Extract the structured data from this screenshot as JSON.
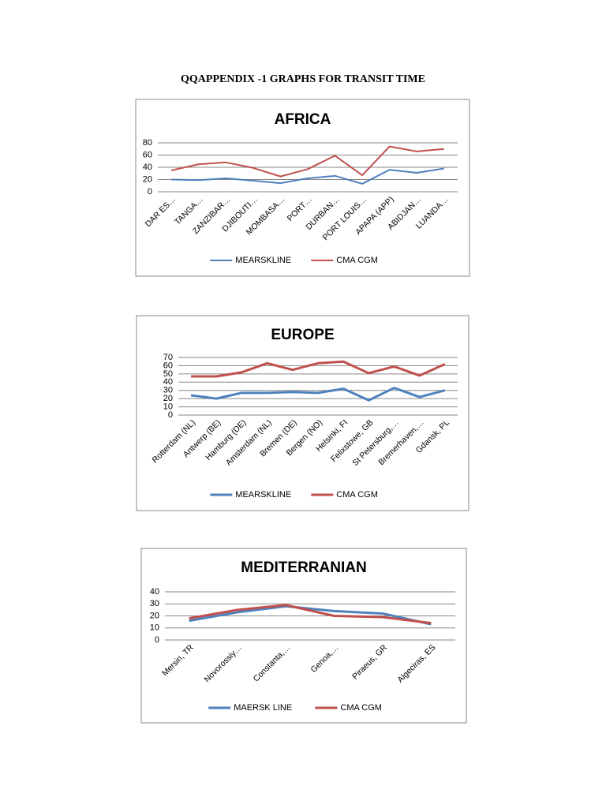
{
  "title": "QQAPPENDIX -1 GRAPHS FOR TRANSIT TIME",
  "chart_data": [
    {
      "type": "line",
      "title": "AFRICA",
      "categories": [
        "DAR ES…",
        "TANGA…",
        "ZANZIBAR…",
        "DJIBOUTI…",
        "MOMBASA…",
        "PORT…",
        "DURBAN…",
        "PORT LOUIS…",
        "APAPA (APP)",
        "ABIDJAN…",
        "LUANDA…"
      ],
      "series": [
        {
          "name": "MEARSKLINE",
          "color": "#4f81bd",
          "values": [
            20,
            19,
            22,
            18,
            14,
            22,
            26,
            13,
            36,
            31,
            38
          ]
        },
        {
          "name": "CMA CGM",
          "color": "#c0504d",
          "values": [
            35,
            45,
            48,
            39,
            25,
            37,
            59,
            27,
            74,
            66,
            70
          ]
        }
      ],
      "ylim": [
        0,
        80
      ],
      "yticks": [
        0,
        20,
        40,
        60,
        80
      ],
      "grid": true,
      "legend": "bottom"
    },
    {
      "type": "line",
      "title": "EUROPE",
      "categories": [
        "Rotterdam (NL)",
        "Antwerp (BE)",
        "Hamburg (DE)",
        "Amsterdam (NL)",
        "Bremen (DE)",
        "Bergen (NO)",
        "Helsinki, FI",
        "Felixstowe, GB",
        "St Petersburg,…",
        "Bremerhaven,…",
        "Gdansk, PL"
      ],
      "series": [
        {
          "name": "MEARSKLINE",
          "color": "#4f81bd",
          "values": [
            24,
            20,
            27,
            27,
            28,
            27,
            32,
            18,
            33,
            22,
            30
          ]
        },
        {
          "name": "CMA CGM",
          "color": "#c0504d",
          "values": [
            47,
            47,
            52,
            63,
            55,
            63,
            65,
            51,
            59,
            48,
            62
          ]
        }
      ],
      "ylim": [
        0,
        70
      ],
      "yticks": [
        0,
        10,
        20,
        30,
        40,
        50,
        60,
        70
      ],
      "grid": true,
      "legend": "bottom"
    },
    {
      "type": "line",
      "title": "MEDITERRANIAN",
      "categories": [
        "Mersin, TR",
        "Novorossiy…",
        "Constanta,…",
        "Genoa,…",
        "Piraeus, GR",
        "Algeciras, ES"
      ],
      "series": [
        {
          "name": "MAERSK LINE",
          "color": "#4f81bd",
          "values": [
            16,
            23,
            28,
            24,
            22,
            13
          ]
        },
        {
          "name": "CMA CGM",
          "color": "#c0504d",
          "values": [
            18,
            25,
            29,
            20,
            19,
            14
          ]
        }
      ],
      "ylim": [
        0,
        40
      ],
      "yticks": [
        0,
        10,
        20,
        30,
        40
      ],
      "grid": true,
      "legend": "bottom"
    }
  ]
}
